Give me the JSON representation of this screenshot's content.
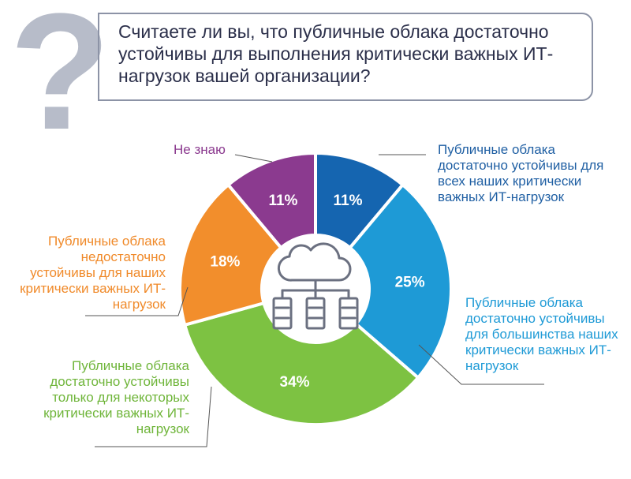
{
  "question": {
    "mark": "?",
    "text": "Считаете ли вы, что публичные облака достаточно устойчивы для выполнения критически важных ИТ-нагрузок вашей организации?"
  },
  "center_icon": "cloud-servers-icon",
  "chart_data": {
    "type": "pie",
    "donut": true,
    "title": "",
    "slices": [
      {
        "key": "all",
        "label": "Публичные облака достаточно устойчивы для всех наших критически важных ИТ-нагрузок",
        "value": 11,
        "value_label": "11%",
        "color": "#1565b0"
      },
      {
        "key": "most",
        "label": "Публичные облака достаточно устойчивы для большинства наших критически важных ИТ-нагрузок",
        "value": 25,
        "value_label": "25%",
        "color": "#1e9ad6"
      },
      {
        "key": "some",
        "label": "Публичные облака достаточно устойчивы только для некоторых критически важных ИТ-нагрузок",
        "value": 34,
        "value_label": "34%",
        "color": "#7dc242"
      },
      {
        "key": "insufficient",
        "label": "Публичные облака недостаточно устойчивы для наших критически важных ИТ-нагрузок",
        "value": 18,
        "value_label": "18%",
        "color": "#f28e2c"
      },
      {
        "key": "dont_know",
        "label": "Не знаю",
        "value": 11,
        "value_label": "11%",
        "color": "#8b3a8f"
      }
    ]
  }
}
